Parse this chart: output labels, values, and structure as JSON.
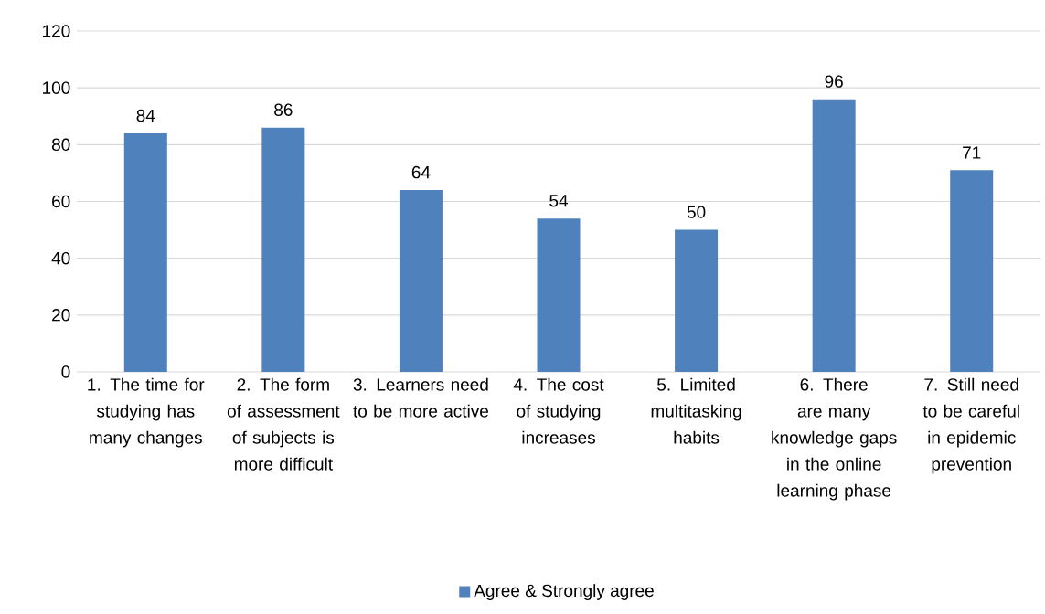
{
  "chart_data": {
    "type": "bar",
    "categories": [
      "1. The time for studying has many changes",
      "2. The form of assessment of subjects is more difficult",
      "3. Learners need to be more active",
      "4. The cost of studying increases",
      "5. Limited multitasking habits",
      "6. There are many knowledge gaps in the online learning phase",
      "7. Still need to be careful in epidemic prevention"
    ],
    "series": [
      {
        "name": "Agree & Strongly agree",
        "color": "#4f81bd",
        "values": [
          84,
          86,
          64,
          54,
          50,
          96,
          71
        ]
      }
    ],
    "ylim": [
      0,
      120
    ],
    "yticks": [
      0,
      20,
      40,
      60,
      80,
      100,
      120
    ],
    "grid": "y",
    "legend": "bottom",
    "data_labels": true
  }
}
